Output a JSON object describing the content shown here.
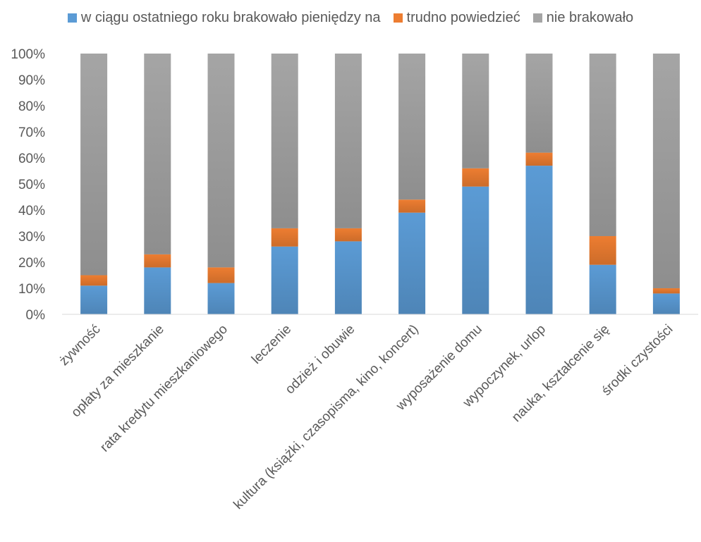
{
  "chart_data": {
    "type": "bar",
    "stacked": true,
    "percent_stacked": true,
    "categories": [
      "żywność",
      "opłaty za mieszkanie",
      "rata kredytu mieszkaniowego",
      "leczenie",
      "odzież i obuwie",
      "kultura (książki, czasopisma, kino, koncert)",
      "wyposażenie domu",
      "wypoczynek, urlop",
      "nauka, kształcenie się",
      "środki czystości"
    ],
    "series": [
      {
        "name": "w ciągu ostatniego roku brakowało pieniędzy na",
        "color": "#5B9BD5",
        "values": [
          11,
          18,
          12,
          26,
          28,
          39,
          49,
          57,
          19,
          8
        ]
      },
      {
        "name": "trudno powiedzieć",
        "color": "#ED7D31",
        "values": [
          4,
          5,
          6,
          7,
          5,
          5,
          7,
          5,
          11,
          2
        ]
      },
      {
        "name": "nie brakowało",
        "color": "#A5A5A5",
        "values": [
          85,
          77,
          82,
          67,
          67,
          56,
          44,
          38,
          70,
          90
        ]
      }
    ],
    "ylim": [
      0,
      100
    ],
    "yticks": [
      "0%",
      "10%",
      "20%",
      "30%",
      "40%",
      "50%",
      "60%",
      "70%",
      "80%",
      "90%",
      "100%"
    ],
    "grid": false,
    "legend_position": "top"
  }
}
